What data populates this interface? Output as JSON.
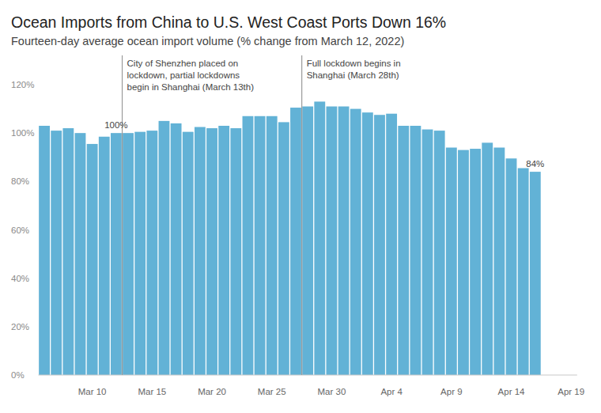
{
  "chart_data": {
    "type": "bar",
    "title": "Ocean Imports from China to U.S. West Coast Ports Down 16%",
    "subtitle": "Fourteen-day average ocean import volume (% change from March 12, 2022)",
    "categories": [
      null,
      null,
      null,
      null,
      "Mar 10",
      null,
      null,
      null,
      null,
      "Mar 15",
      null,
      null,
      null,
      null,
      "Mar 20",
      null,
      null,
      null,
      null,
      "Mar 25",
      null,
      null,
      null,
      null,
      "Mar 30",
      null,
      null,
      null,
      null,
      "Apr 4",
      null,
      null,
      null,
      null,
      "Apr 9",
      null,
      null,
      null,
      null,
      "Apr 14",
      null,
      null,
      null,
      null,
      "Apr 19"
    ],
    "values": [
      103,
      101,
      102,
      100,
      95.5,
      98.5,
      100,
      100,
      100.5,
      101,
      105,
      104,
      100.5,
      102.5,
      102,
      103,
      102,
      107,
      107,
      107,
      104.5,
      110.5,
      111,
      113,
      111,
      111,
      110,
      108.5,
      107.5,
      108,
      103,
      103,
      101.5,
      101,
      94,
      93,
      93.5,
      96,
      94,
      89.5,
      85.5,
      84,
      null,
      null,
      null
    ],
    "value_labels": [
      null,
      null,
      null,
      null,
      null,
      null,
      "100%",
      null,
      null,
      null,
      null,
      null,
      null,
      null,
      null,
      null,
      null,
      null,
      null,
      null,
      null,
      null,
      null,
      null,
      null,
      null,
      null,
      null,
      null,
      null,
      null,
      null,
      null,
      null,
      null,
      null,
      null,
      null,
      null,
      null,
      null,
      "84%",
      null,
      null,
      null
    ],
    "data_labels": true,
    "color": "#62b2d6",
    "ylim": [
      0,
      120
    ],
    "yticks": [
      {
        "value": 0,
        "label": "0%"
      },
      {
        "value": 20,
        "label": "20%"
      },
      {
        "value": 40,
        "label": "40%"
      },
      {
        "value": 60,
        "label": "60%"
      },
      {
        "value": 80,
        "label": "80%"
      },
      {
        "value": 100,
        "label": "100%"
      },
      {
        "value": 120,
        "label": "120%"
      }
    ],
    "grid": false,
    "annotations": [
      {
        "index": 7,
        "lines": [
          "City of Shenzhen placed on",
          "lockdown, partial lockdowns",
          "begin in Shanghai (March 13th)"
        ]
      },
      {
        "index": 22,
        "lines": [
          "Full lockdown begins in",
          "Shanghai (March 28th)"
        ]
      }
    ]
  }
}
